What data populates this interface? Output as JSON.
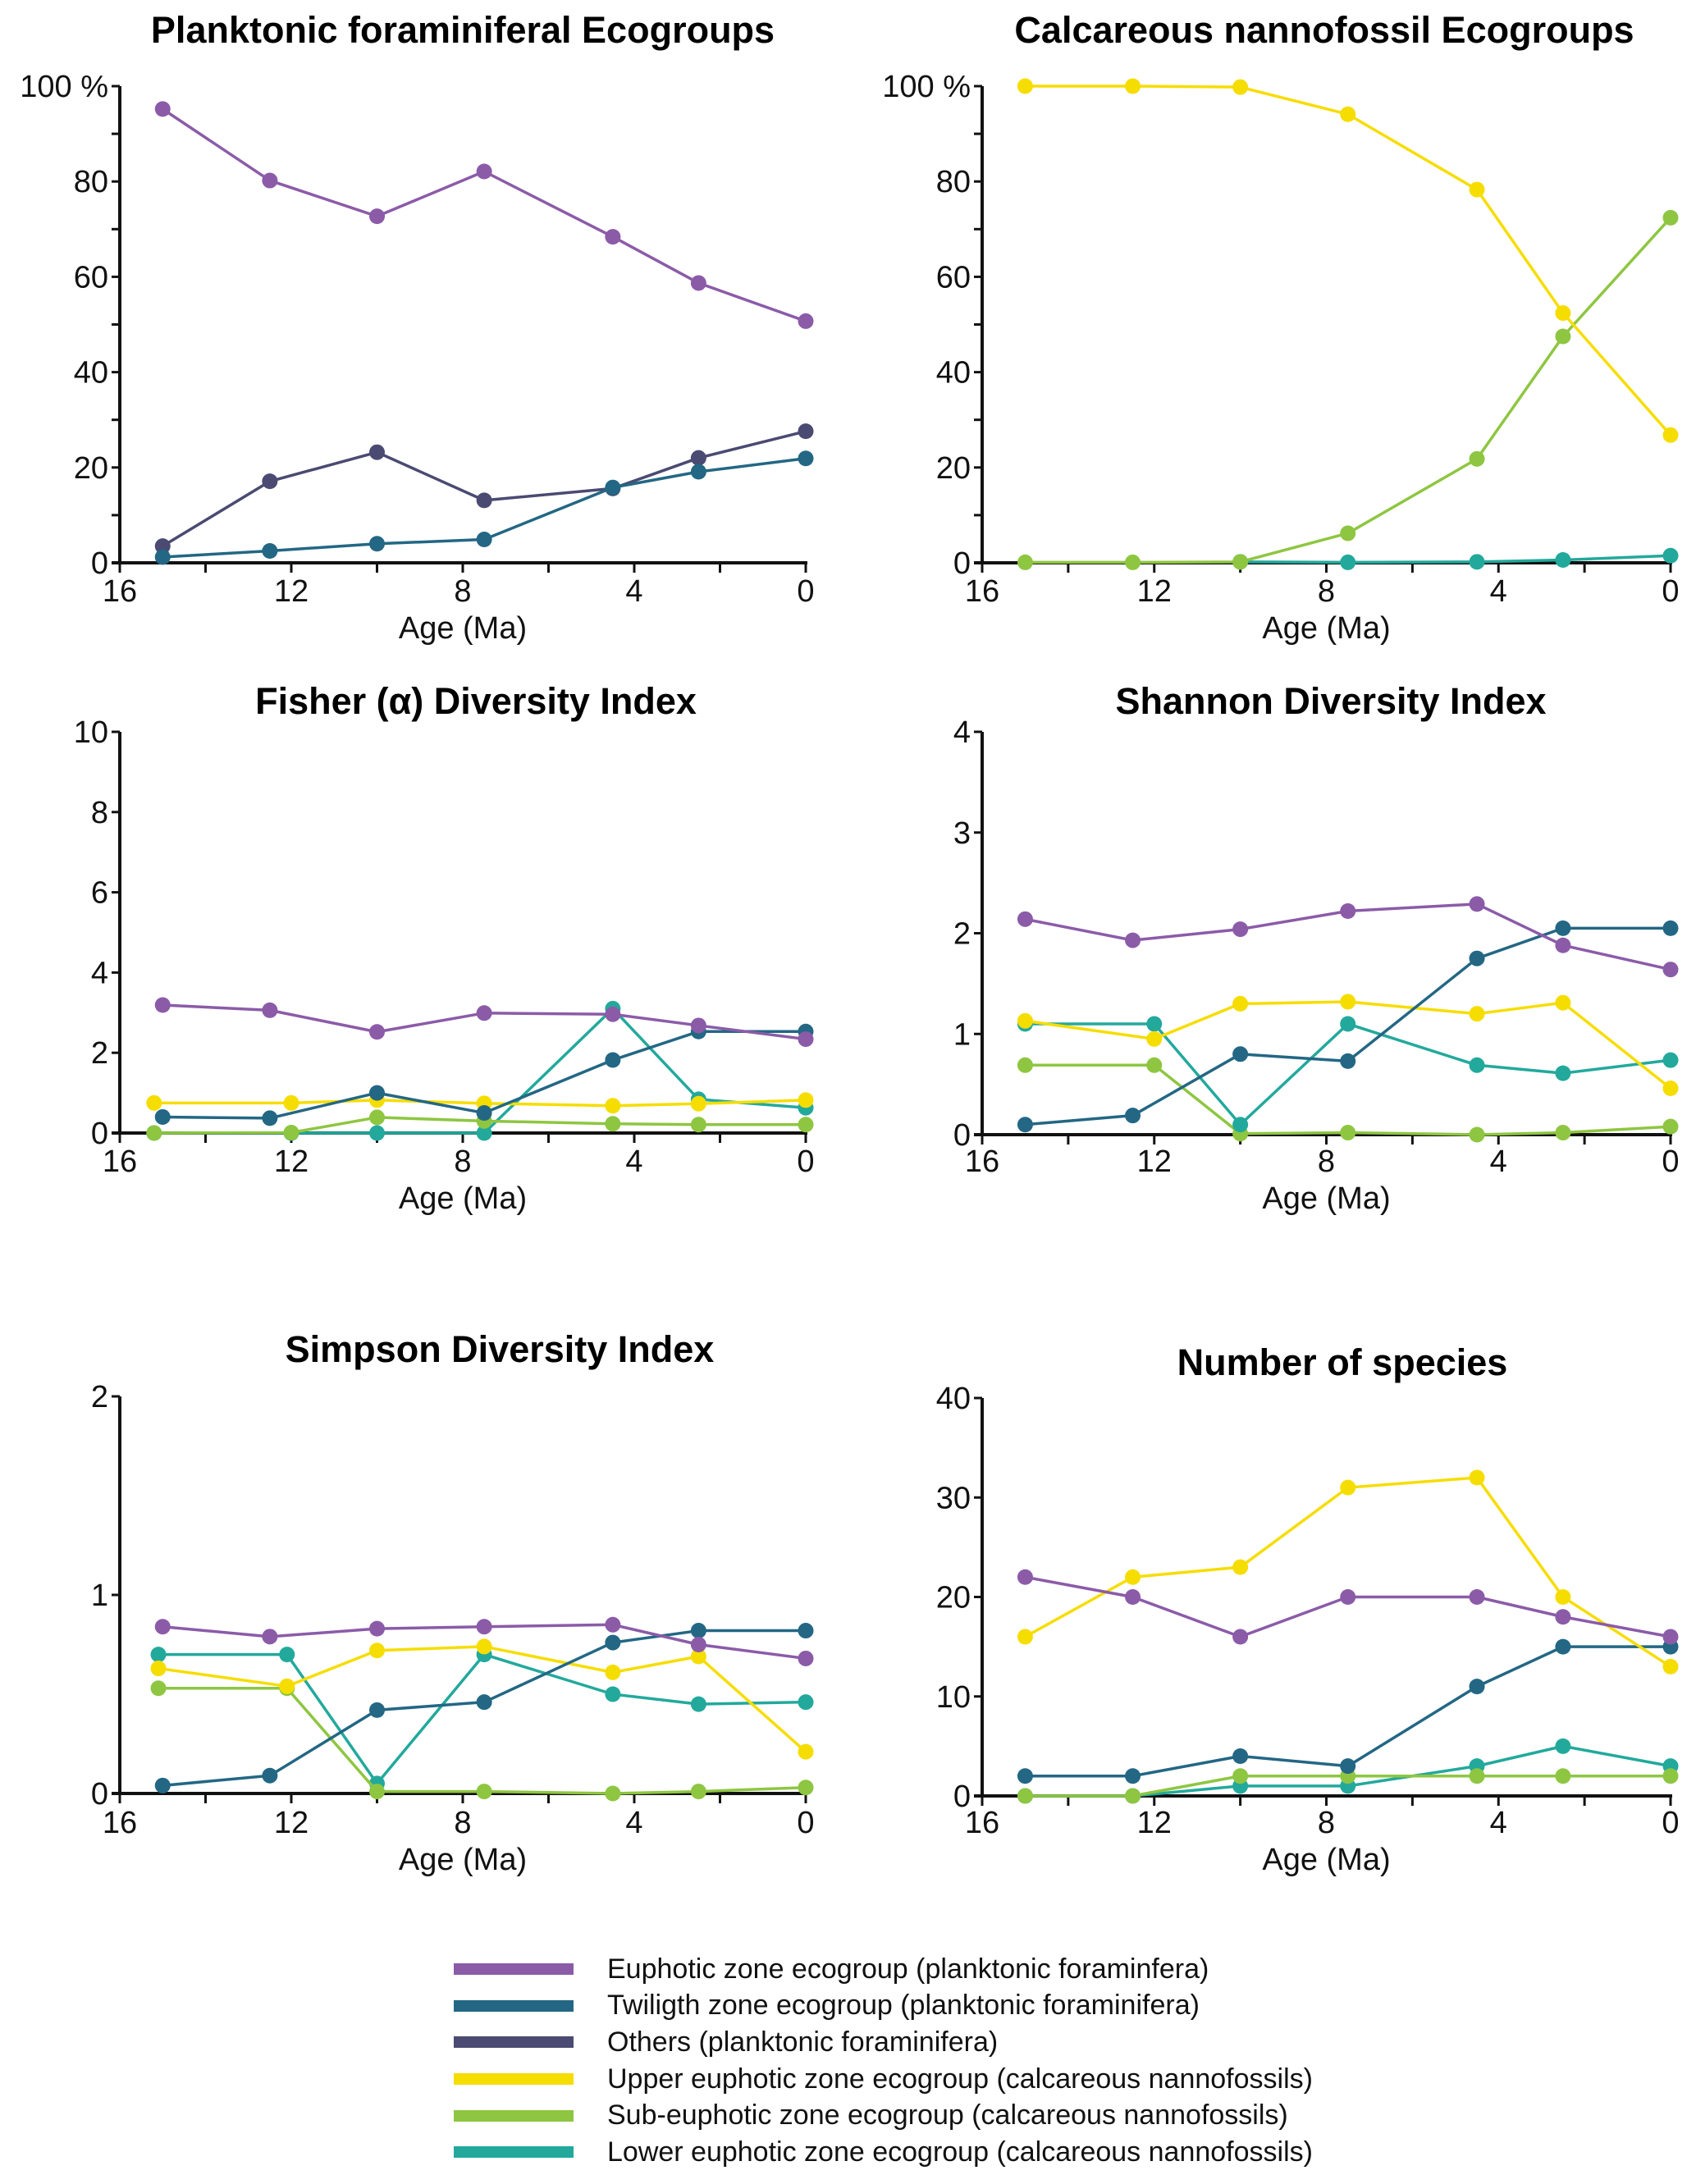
{
  "series_styles": {
    "euphotic_pf": {
      "label": "Euphotic zone ecogroup (planktonic foraminfera)",
      "color": "#8B5BA8"
    },
    "twilight_pf": {
      "label": "Twiligth zone ecogroup (planktonic foraminifera)",
      "color": "#236784"
    },
    "others_pf": {
      "label": "Others (planktonic foraminifera)",
      "color": "#4A4A72"
    },
    "upper_cn": {
      "label": "Upper euphotic zone ecogroup (calcareous nannofossils)",
      "color": "#F6DD00"
    },
    "sub_cn": {
      "label": "Sub-euphotic zone ecogroup (calcareous nannofossils)",
      "color": "#8EC641"
    },
    "lower_cn": {
      "label": "Lower euphotic zone ecogroup (calcareous nannofossils)",
      "color": "#22A99C"
    }
  },
  "legend": {
    "items": [
      {
        "key": "euphotic_pf",
        "label": "Euphotic zone ecogroup (planktonic foraminfera)",
        "color": "#8B5BA8"
      },
      {
        "key": "twilight_pf",
        "label": "Twiligth zone ecogroup (planktonic foraminifera)",
        "color": "#236784"
      },
      {
        "key": "others_pf",
        "label": "Others (planktonic foraminifera)",
        "color": "#4A4A72"
      },
      {
        "key": "upper_cn",
        "label": "Upper euphotic zone ecogroup (calcareous nannofossils)",
        "color": "#F6DD00"
      },
      {
        "key": "sub_cn",
        "label": "Sub-euphotic zone ecogroup (calcareous nannofossils)",
        "color": "#8EC641"
      },
      {
        "key": "lower_cn",
        "label": "Lower euphotic zone ecogroup (calcareous nannofossils)",
        "color": "#22A99C"
      }
    ],
    "placement": "bottom-center"
  },
  "chart_data": [
    {
      "id": "pf-ecogroups",
      "type": "line",
      "title": "Planktonic foraminiferal Ecogroups",
      "xlabel": "Age (Ma)",
      "ylabel": "",
      "xlim": [
        16,
        0
      ],
      "ylim": [
        0,
        100
      ],
      "x_ticks": [
        16,
        12,
        8,
        4,
        0
      ],
      "x_tick_labels": [
        "16",
        "12",
        "8",
        "4",
        "0"
      ],
      "x_minor_ticks": [
        14,
        10,
        6,
        2
      ],
      "y_ticks": [
        0,
        20,
        40,
        60,
        80,
        100
      ],
      "y_tick_labels": [
        "0",
        "20",
        "40",
        "60",
        "80",
        "100 %"
      ],
      "y_minor_ticks": [
        10,
        30,
        50,
        70,
        90
      ],
      "grid": false,
      "series": [
        {
          "key": "euphotic_pf",
          "name": "Euphotic zone ecogroup (planktonic foraminfera)",
          "x": [
            15,
            12.5,
            10,
            7.5,
            4.5,
            2.5,
            0
          ],
          "values": [
            95.2,
            80.2,
            72.7,
            82.1,
            68.4,
            58.7,
            50.7
          ]
        },
        {
          "key": "others_pf",
          "name": "Others (planktonic foraminifera)",
          "x": [
            15,
            12.5,
            10,
            7.5,
            4.5,
            2.5,
            0
          ],
          "values": [
            3.5,
            17.1,
            23.2,
            13.1,
            15.6,
            22.0,
            27.6
          ]
        },
        {
          "key": "twilight_pf",
          "name": "Twiligth zone ecogroup (planktonic foraminifera)",
          "x": [
            15,
            12.5,
            10,
            7.5,
            4.5,
            2.5,
            0
          ],
          "values": [
            1.2,
            2.5,
            4.0,
            4.9,
            15.8,
            19.1,
            21.9
          ]
        }
      ]
    },
    {
      "id": "cn-ecogroups",
      "type": "line",
      "title": "Calcareous nannofossil Ecogroups",
      "xlabel": "Age (Ma)",
      "ylabel": "",
      "xlim": [
        16,
        0
      ],
      "ylim": [
        0,
        100
      ],
      "x_ticks": [
        16,
        12,
        8,
        4,
        0
      ],
      "x_tick_labels": [
        "16",
        "12",
        "8",
        "4",
        "0"
      ],
      "x_minor_ticks": [
        14,
        10,
        6,
        2
      ],
      "y_ticks": [
        0,
        20,
        40,
        60,
        80,
        100
      ],
      "y_tick_labels": [
        "0",
        "20",
        "40",
        "60",
        "80",
        "100 %"
      ],
      "y_minor_ticks": [
        10,
        30,
        50,
        70,
        90
      ],
      "grid": false,
      "series": [
        {
          "key": "lower_cn",
          "name": "Lower euphotic zone ecogroup (calcareous nannofossils)",
          "x": [
            10,
            7.5,
            4.5,
            2.5,
            0
          ],
          "values": [
            0.2,
            0.1,
            0.2,
            0.6,
            1.5
          ]
        },
        {
          "key": "sub_cn",
          "name": "Sub-euphotic zone ecogroup (calcareous nannofossils)",
          "x": [
            15,
            12.5,
            10,
            7.5,
            4.5,
            2.5,
            0
          ],
          "values": [
            0.1,
            0.1,
            0.2,
            6.2,
            21.8,
            47.5,
            72.4
          ]
        },
        {
          "key": "upper_cn",
          "name": "Upper euphotic zone ecogroup (calcareous nannofossils)",
          "x": [
            15,
            12.5,
            10,
            7.5,
            4.5,
            2.5,
            0
          ],
          "values": [
            100,
            100,
            99.8,
            94.1,
            78.3,
            52.4,
            26.8
          ]
        }
      ]
    },
    {
      "id": "fisher",
      "type": "line",
      "title": "Fisher (α) Diversity Index",
      "xlabel": "Age (Ma)",
      "ylabel": "",
      "xlim": [
        16,
        0
      ],
      "ylim": [
        0,
        10
      ],
      "x_ticks": [
        16,
        12,
        8,
        4,
        0
      ],
      "x_tick_labels": [
        "16",
        "12",
        "8",
        "4",
        "0"
      ],
      "x_minor_ticks": [
        14,
        10,
        6,
        2
      ],
      "y_ticks": [
        0,
        2,
        4,
        6,
        8,
        10
      ],
      "y_tick_labels": [
        "0",
        "2",
        "4",
        "6",
        "8",
        "10"
      ],
      "y_minor_ticks": [],
      "grid": false,
      "series": [
        {
          "key": "lower_cn",
          "name": "Lower euphotic zone ecogroup (calcareous nannofossils)",
          "x": [
            15.2,
            12,
            10,
            7.5,
            4.5,
            2.5,
            0
          ],
          "values": [
            0,
            0,
            0,
            0,
            3.1,
            0.84,
            0.63
          ]
        },
        {
          "key": "sub_cn",
          "name": "Sub-euphotic zone ecogroup (calcareous nannofossils)",
          "x": [
            15.2,
            12,
            10,
            7.5,
            4.5,
            2.5,
            0
          ],
          "values": [
            0,
            0.01,
            0.39,
            0.3,
            0.23,
            0.21,
            0.21
          ]
        },
        {
          "key": "upper_cn",
          "name": "Upper euphotic zone ecogroup (calcareous nannofossils)",
          "x": [
            15.2,
            12,
            10,
            7.5,
            4.5,
            2.5,
            0
          ],
          "values": [
            0.75,
            0.75,
            0.82,
            0.74,
            0.68,
            0.73,
            0.82
          ]
        },
        {
          "key": "twilight_pf",
          "name": "Twiligth zone ecogroup (planktonic foraminifera)",
          "x": [
            15,
            12.5,
            10,
            7.5,
            4.5,
            2.5,
            0
          ],
          "values": [
            0.4,
            0.37,
            1.0,
            0.5,
            1.82,
            2.53,
            2.53
          ]
        },
        {
          "key": "euphotic_pf",
          "name": "Euphotic zone ecogroup (planktonic foraminfera)",
          "x": [
            15,
            12.5,
            10,
            7.5,
            4.5,
            2.5,
            0
          ],
          "values": [
            3.19,
            3.06,
            2.52,
            2.99,
            2.96,
            2.68,
            2.34
          ]
        }
      ]
    },
    {
      "id": "shannon",
      "type": "line",
      "title": "Shannon Diversity Index",
      "xlabel": "Age (Ma)",
      "ylabel": "",
      "xlim": [
        16,
        0
      ],
      "ylim": [
        0,
        4
      ],
      "x_ticks": [
        16,
        12,
        8,
        4,
        0
      ],
      "x_tick_labels": [
        "16",
        "12",
        "8",
        "4",
        "0"
      ],
      "x_minor_ticks": [
        14,
        10,
        6,
        2
      ],
      "y_ticks": [
        0,
        1,
        2,
        3,
        4
      ],
      "y_tick_labels": [
        "0",
        "1",
        "2",
        "3",
        "4"
      ],
      "y_minor_ticks": [],
      "grid": false,
      "series": [
        {
          "key": "sub_cn",
          "name": "Sub-euphotic zone ecogroup (calcareous nannofossils)",
          "x": [
            15,
            12,
            10,
            7.5,
            4.5,
            2.5,
            0
          ],
          "values": [
            0.69,
            0.69,
            0.01,
            0.02,
            0.0,
            0.02,
            0.08
          ]
        },
        {
          "key": "lower_cn",
          "name": "Lower euphotic zone ecogroup (calcareous nannofossils)",
          "x": [
            15,
            12,
            10,
            7.5,
            4.5,
            2.5,
            0
          ],
          "values": [
            1.1,
            1.1,
            0.1,
            1.1,
            0.69,
            0.61,
            0.74
          ]
        },
        {
          "key": "upper_cn",
          "name": "Upper euphotic zone ecogroup (calcareous nannofossils)",
          "x": [
            15,
            12,
            10,
            7.5,
            4.5,
            2.5,
            0
          ],
          "values": [
            1.13,
            0.95,
            1.3,
            1.32,
            1.2,
            1.31,
            0.46
          ]
        },
        {
          "key": "twilight_pf",
          "name": "Twiligth zone ecogroup (planktonic foraminifera)",
          "x": [
            15,
            12.5,
            10,
            7.5,
            4.5,
            2.5,
            0
          ],
          "values": [
            0.1,
            0.19,
            0.8,
            0.73,
            1.75,
            2.05,
            2.05
          ]
        },
        {
          "key": "euphotic_pf",
          "name": "Euphotic zone ecogroup (planktonic foraminfera)",
          "x": [
            15,
            12.5,
            10,
            7.5,
            4.5,
            2.5,
            0
          ],
          "values": [
            2.14,
            1.93,
            2.04,
            2.22,
            2.29,
            1.88,
            1.64
          ]
        }
      ]
    },
    {
      "id": "simpson",
      "type": "line",
      "title": "Simpson Diversity Index",
      "xlabel": "Age (Ma)",
      "ylabel": "",
      "xlim": [
        16,
        0
      ],
      "ylim": [
        0,
        2
      ],
      "x_ticks": [
        16,
        12,
        8,
        4,
        0
      ],
      "x_tick_labels": [
        "16",
        "12",
        "8",
        "4",
        "0"
      ],
      "x_minor_ticks": [
        14,
        10,
        6,
        2
      ],
      "y_ticks": [
        0,
        1,
        2
      ],
      "y_tick_labels": [
        "0",
        "1",
        "2"
      ],
      "y_minor_ticks": [],
      "grid": false,
      "series": [
        {
          "key": "lower_cn",
          "name": "Lower euphotic zone ecogroup (calcareous nannofossils)",
          "x": [
            15.1,
            12.1,
            10,
            7.5,
            4.5,
            2.5,
            0
          ],
          "values": [
            0.7,
            0.7,
            0.05,
            0.7,
            0.5,
            0.45,
            0.46
          ]
        },
        {
          "key": "sub_cn",
          "name": "Sub-euphotic zone ecogroup (calcareous nannofossils)",
          "x": [
            15.1,
            12.1,
            10,
            7.5,
            4.5,
            2.5,
            0
          ],
          "values": [
            0.53,
            0.53,
            0.01,
            0.01,
            0.0,
            0.01,
            0.03
          ]
        },
        {
          "key": "upper_cn",
          "name": "Upper euphotic zone ecogroup (calcareous nannofossils)",
          "x": [
            15.1,
            12.1,
            10,
            7.5,
            4.5,
            2.5,
            0
          ],
          "values": [
            0.63,
            0.54,
            0.72,
            0.74,
            0.61,
            0.69,
            0.21
          ]
        },
        {
          "key": "twilight_pf",
          "name": "Twiligth zone ecogroup (planktonic foraminifera)",
          "x": [
            15,
            12.5,
            10,
            7.5,
            4.5,
            2.5,
            0
          ],
          "values": [
            0.04,
            0.09,
            0.42,
            0.46,
            0.76,
            0.82,
            0.82
          ]
        },
        {
          "key": "euphotic_pf",
          "name": "Euphotic zone ecogroup (planktonic foraminfera)",
          "x": [
            15,
            12.5,
            10,
            7.5,
            4.5,
            2.5,
            0
          ],
          "values": [
            0.84,
            0.79,
            0.83,
            0.84,
            0.85,
            0.75,
            0.68
          ]
        }
      ]
    },
    {
      "id": "species",
      "type": "line",
      "title": "Number of species",
      "xlabel": "Age (Ma)",
      "ylabel": "",
      "xlim": [
        16,
        0
      ],
      "ylim": [
        0,
        40
      ],
      "x_ticks": [
        16,
        12,
        8,
        4,
        0
      ],
      "x_tick_labels": [
        "16",
        "12",
        "8",
        "4",
        "0"
      ],
      "x_minor_ticks": [
        14,
        10,
        6,
        2
      ],
      "y_ticks": [
        0,
        10,
        20,
        30,
        40
      ],
      "y_tick_labels": [
        "0",
        "10",
        "20",
        "30",
        "40"
      ],
      "y_minor_ticks": [],
      "grid": false,
      "series": [
        {
          "key": "lower_cn",
          "name": "Lower euphotic zone ecogroup (calcareous nannofossils)",
          "x": [
            15,
            12.5,
            10,
            7.5,
            4.5,
            2.5,
            0
          ],
          "values": [
            0,
            0,
            1,
            1,
            3,
            5,
            3
          ]
        },
        {
          "key": "sub_cn",
          "name": "Sub-euphotic zone ecogroup (calcareous nannofossils)",
          "x": [
            15,
            12.5,
            10,
            7.5,
            4.5,
            2.5,
            0
          ],
          "values": [
            0,
            0,
            2,
            2,
            2,
            2,
            2
          ]
        },
        {
          "key": "twilight_pf",
          "name": "Twiligth zone ecogroup (planktonic foraminifera)",
          "x": [
            15,
            12.5,
            10,
            7.5,
            4.5,
            2.5,
            0
          ],
          "values": [
            2,
            2,
            4,
            3,
            11,
            15,
            15
          ]
        },
        {
          "key": "upper_cn",
          "name": "Upper euphotic zone ecogroup (calcareous nannofossils)",
          "x": [
            15,
            12.5,
            10,
            7.5,
            4.5,
            2.5,
            0
          ],
          "values": [
            16,
            22,
            23,
            31,
            32,
            20,
            13
          ]
        },
        {
          "key": "euphotic_pf",
          "name": "Euphotic zone ecogroup (planktonic foraminfera)",
          "x": [
            15,
            12.5,
            10,
            7.5,
            4.5,
            2.5,
            0
          ],
          "values": [
            22,
            20,
            16,
            20,
            20,
            18,
            16
          ]
        }
      ]
    }
  ]
}
